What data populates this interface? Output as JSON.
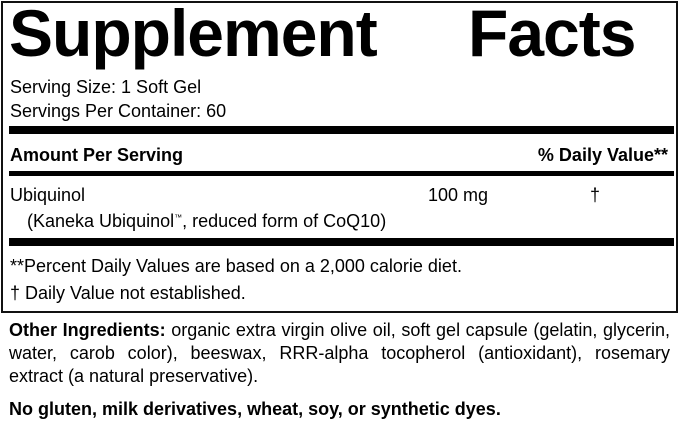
{
  "label": {
    "title_word1": "Supplement",
    "title_word2": "Facts",
    "serving_size": "Serving Size: 1 Soft Gel",
    "servings_per_container": "Servings Per Container: 60",
    "amount_header": "Amount Per Serving",
    "dv_header": "% Daily Value**",
    "nutrient": {
      "name": "Ubiquinol",
      "amount": "100 mg",
      "dv": "†",
      "description_pre": "(Kaneka Ubiquinol",
      "description_tm": "™",
      "description_post": ", reduced form of CoQ10)"
    },
    "footnote_1": "**Percent Daily Values are based on a 2,000 calorie diet.",
    "footnote_2": "† Daily Value not established."
  },
  "other_ingredients": {
    "label": "Other Ingredients:",
    "text": " organic extra virgin olive oil, soft gel capsule (gelatin, glycerin, water, carob color), beeswax, RRR-alpha tocopherol (antioxidant), rosemary extract (a natural preservative)."
  },
  "allergen_statement": "No gluten, milk derivatives, wheat, soy, or synthetic dyes."
}
